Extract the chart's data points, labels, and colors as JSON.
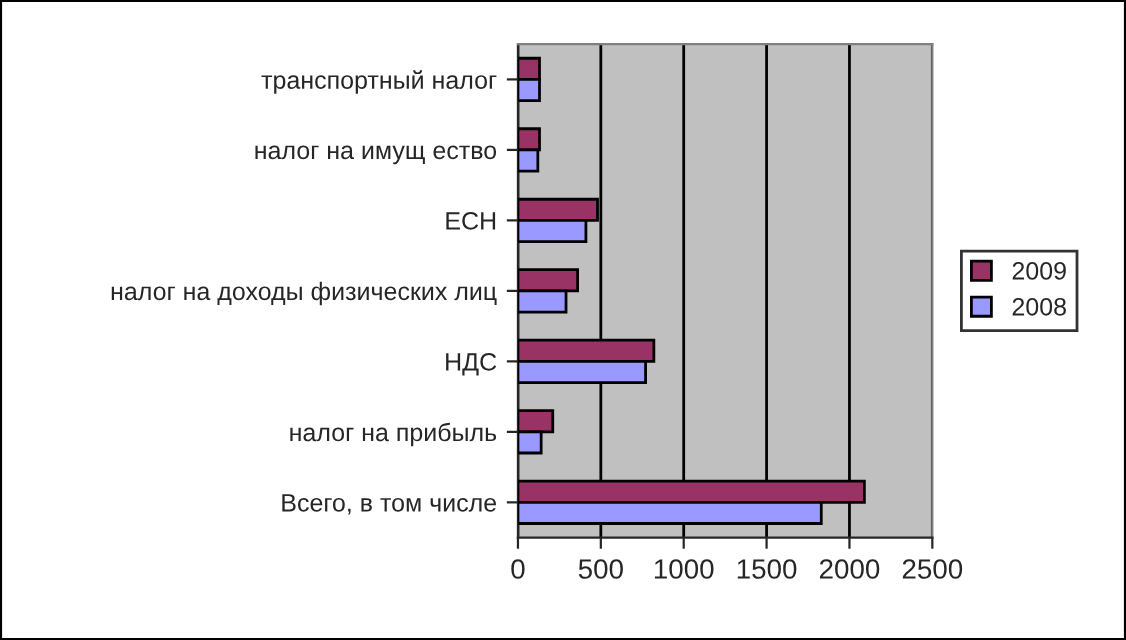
{
  "chart_data": {
    "type": "bar",
    "orientation": "horizontal",
    "categories": [
      "транспортный налог",
      "налог на имущ ество",
      "ЕСН",
      "налог на доходы физических лиц",
      "НДС",
      "налог на прибыль",
      "Всего, в том числе"
    ],
    "series": [
      {
        "name": "2009",
        "color": "#993366",
        "values": [
          130,
          130,
          480,
          360,
          820,
          210,
          2090
        ]
      },
      {
        "name": "2008",
        "color": "#9999ff",
        "values": [
          130,
          120,
          410,
          290,
          770,
          140,
          1830
        ]
      }
    ],
    "xlim": [
      0,
      2500
    ],
    "xticks": [
      0,
      500,
      1000,
      1500,
      2000,
      2500
    ],
    "grid": "x",
    "legend": "right"
  }
}
